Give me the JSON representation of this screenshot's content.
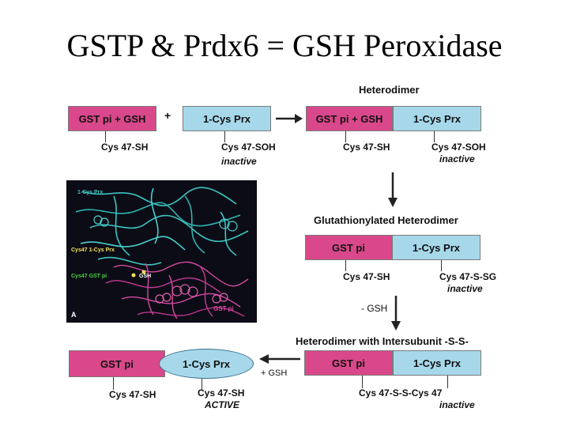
{
  "title": "GSTP & Prdx6 = GSH Peroxidase",
  "top": {
    "header": "Heterodimer",
    "plus": "+",
    "gst_gsh_1": "GST pi + GSH",
    "prx_1": "1-Cys Prx",
    "gst_gsh_2": "GST pi + GSH",
    "prx_2": "1-Cys Prx",
    "cys_sh_1": "Cys 47-SH",
    "cys_soh_1": "Cys 47-SOH",
    "inactive_1": "inactive",
    "cys_sh_2": "Cys 47-SH",
    "cys_soh_2": "Cys 47-SOH",
    "inactive_2": "inactive"
  },
  "middle": {
    "header": "Glutathionylated Heterodimer",
    "gst": "GST pi",
    "prx": "1-Cys Prx",
    "cys_sh": "Cys 47-SH",
    "cys_ssg": "Cys 47-S-SG",
    "inactive": "inactive",
    "minus_gsh": "- GSH"
  },
  "bottom": {
    "header": "Heterodimer with Intersubunit -S-S-",
    "gst": "GST pi",
    "prx": "1-Cys Prx",
    "cys_ss": "Cys 47-S-S-Cys 47",
    "inactive": "inactive",
    "plus_gsh": "+ GSH",
    "left_gst": "GST pi",
    "left_prx": "1-Cys Prx",
    "left_cys_sh_1": "Cys 47-SH",
    "left_cys_sh_2": "Cys 47-SH",
    "active": "ACTIVE"
  },
  "structure": {
    "prx_label": "1-Cys Prx",
    "cys_prx_label": "Cys47 1-Cys Prx",
    "cys_gst_label": "Cys47 GST pi",
    "gsh_label": "GSH",
    "gst_label": "GST pi",
    "panel_letter": "A"
  },
  "colors": {
    "pink": "#d9488a",
    "blue": "#a6d8ea",
    "teal_ribbon": "#3cc4c0",
    "magenta_ribbon": "#d24aa0"
  }
}
